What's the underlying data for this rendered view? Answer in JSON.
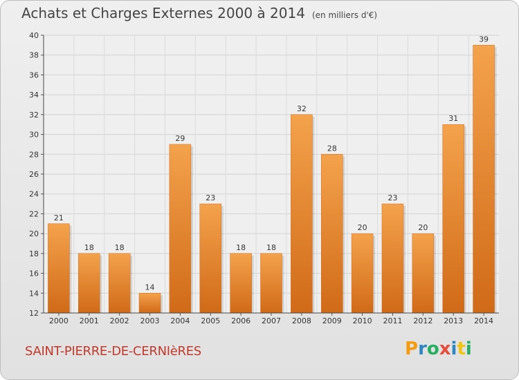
{
  "title": "Achats et Charges Externes 2000 à 2014",
  "unit_label": "(en milliers d'€)",
  "commune": "SAINT-PIERRE-DE-CERNIèRES",
  "logo": {
    "text": "Proxiti",
    "letters": [
      "P",
      "r",
      "o",
      "x",
      "i",
      "t",
      "i"
    ],
    "colors": [
      "#f39c12",
      "#2e86c1",
      "#27ae60",
      "#e74c3c",
      "#2e86c1",
      "#f1c40f",
      "#27ae60"
    ]
  },
  "colors": {
    "bar": "#e8832a",
    "bar_light": "#f4a24c",
    "bar_dark": "#d06a18",
    "commune": "#c0392b"
  },
  "chart_data": {
    "type": "bar",
    "title": "Achats et Charges Externes 2000 à 2014",
    "xlabel": "",
    "ylabel": "en milliers d'€",
    "categories": [
      "2000",
      "2001",
      "2002",
      "2003",
      "2004",
      "2005",
      "2006",
      "2007",
      "2008",
      "2009",
      "2010",
      "2011",
      "2012",
      "2013",
      "2014"
    ],
    "values": [
      21,
      18,
      18,
      14,
      29,
      23,
      18,
      18,
      32,
      28,
      20,
      23,
      20,
      31,
      39
    ],
    "ylim": [
      12,
      40
    ],
    "yticks": [
      12,
      14,
      16,
      18,
      20,
      22,
      24,
      26,
      28,
      30,
      32,
      34,
      36,
      38,
      40
    ],
    "grid": true
  }
}
